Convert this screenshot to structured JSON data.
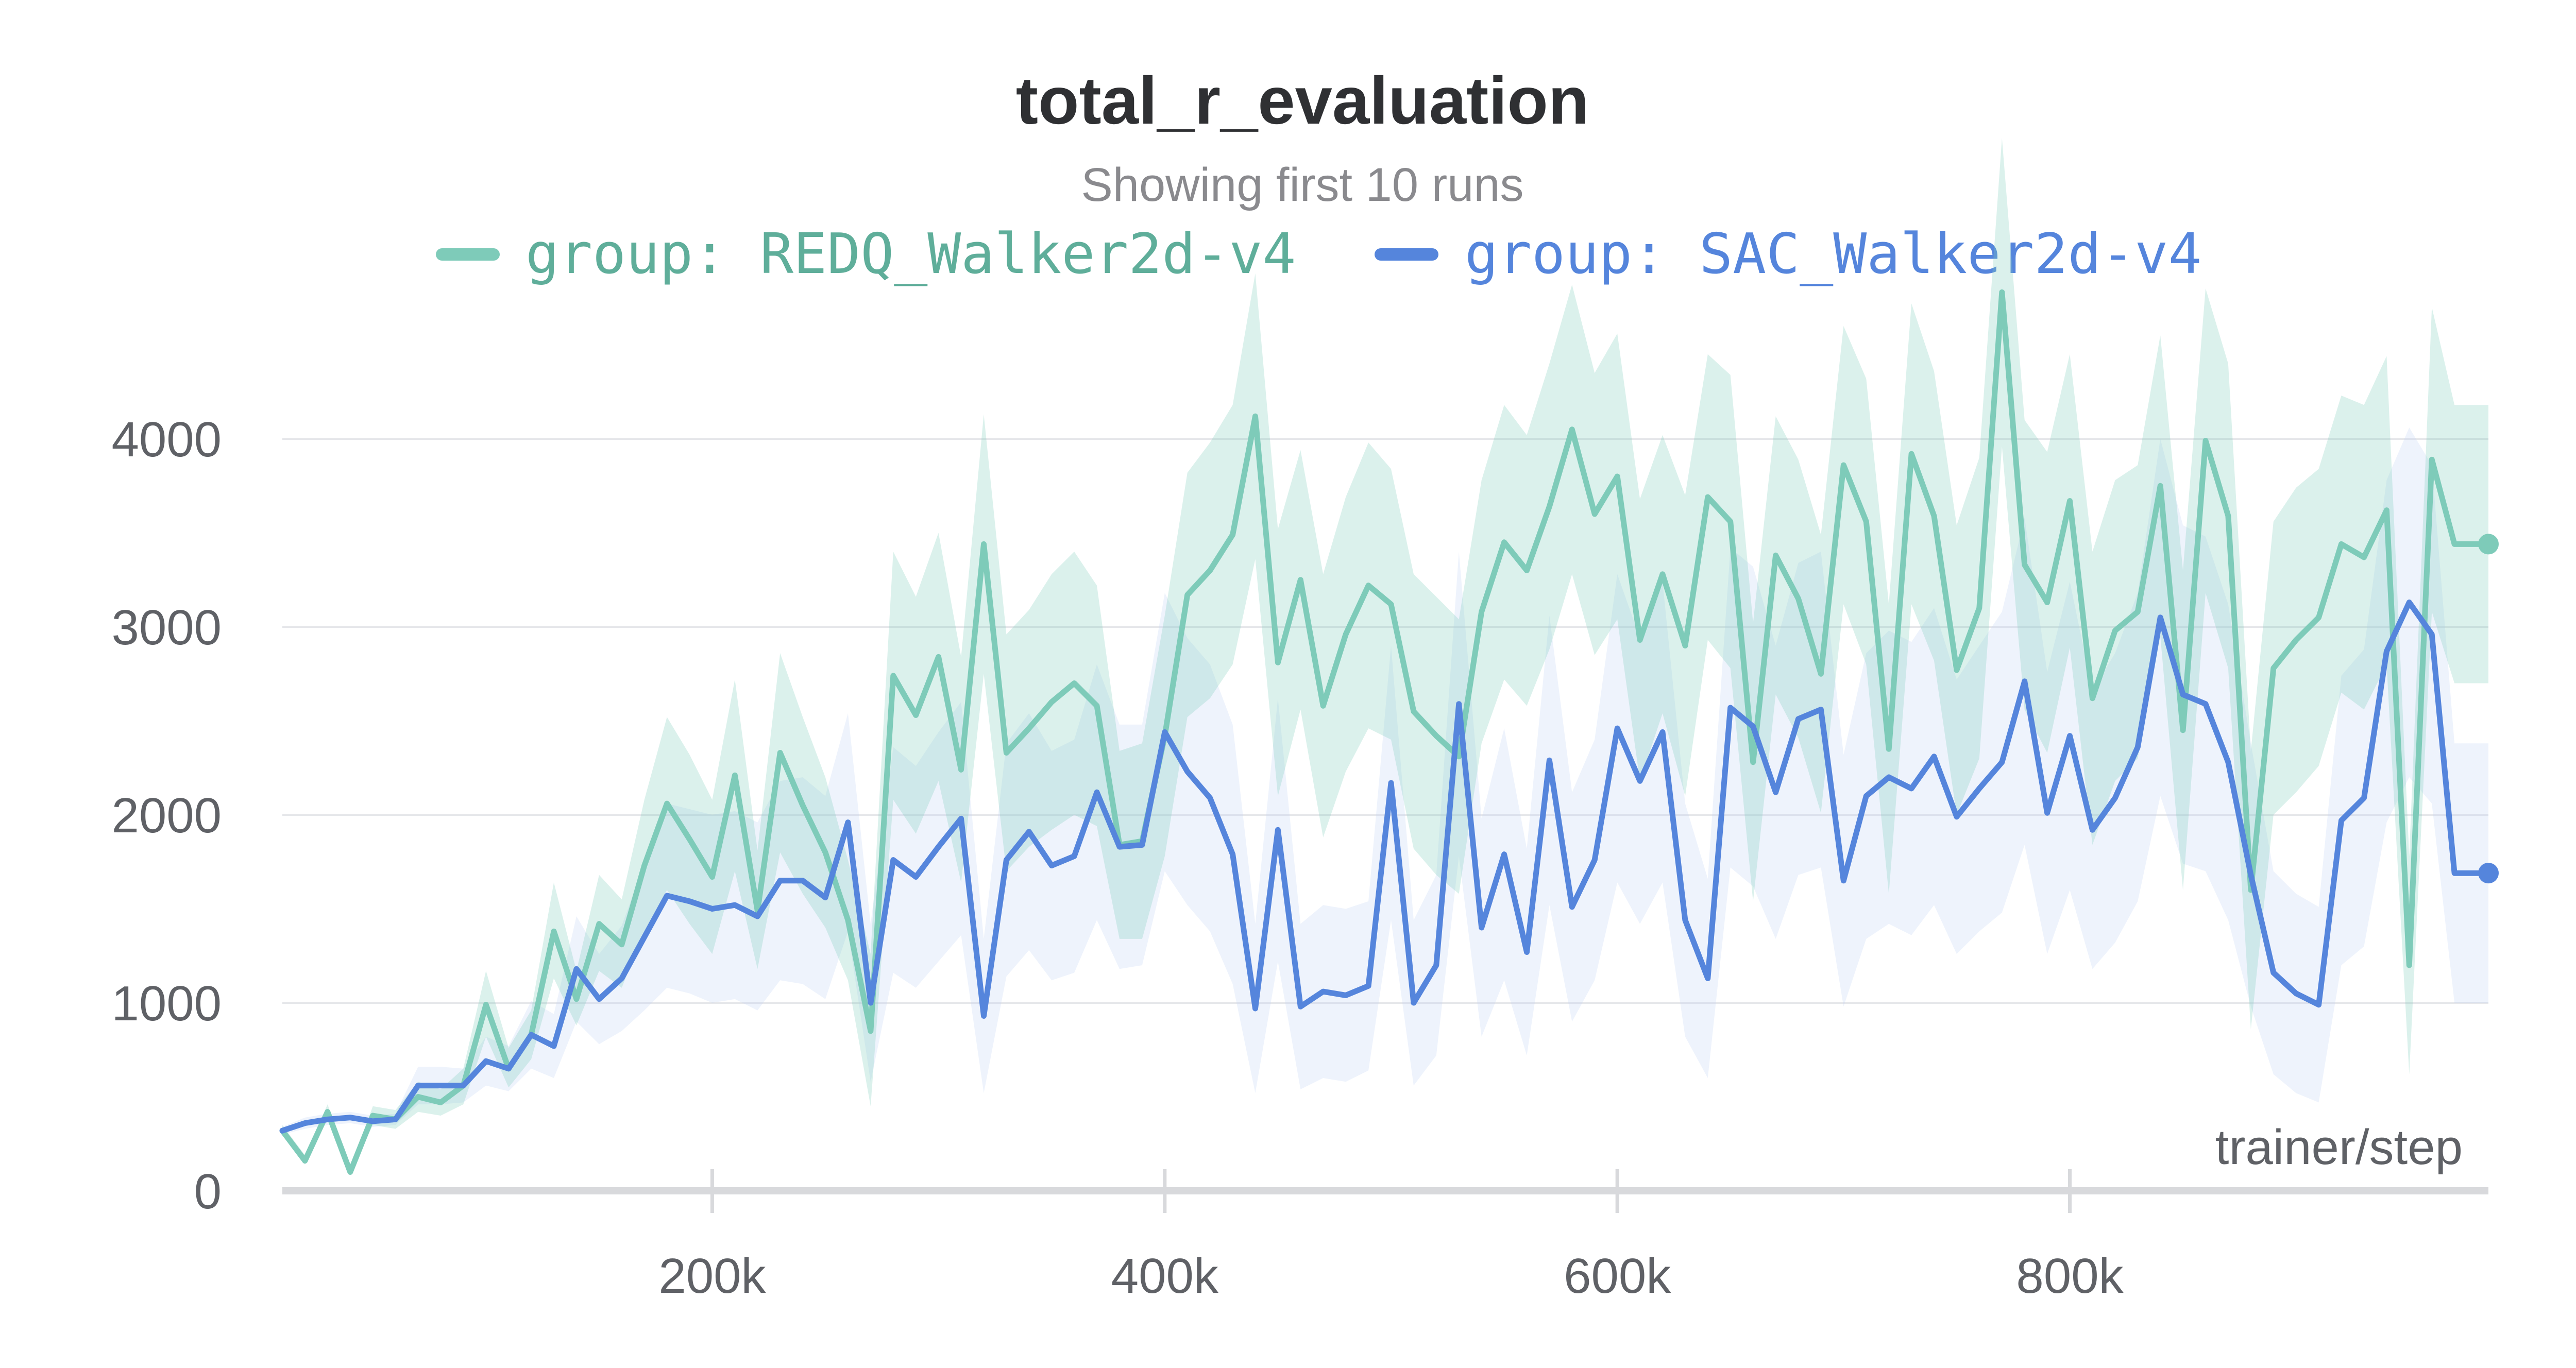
{
  "chart_data": {
    "type": "line",
    "title": "total_r_evaluation",
    "subtitle": "Showing first 10 runs",
    "xlabel": "trainer/step",
    "ylabel": "",
    "xlim": [
      10000,
      985000
    ],
    "ylim": [
      0,
      4800
    ],
    "x_ticks": [
      "200k",
      "400k",
      "600k",
      "800k"
    ],
    "x_tick_values": [
      200000,
      400000,
      600000,
      800000
    ],
    "y_ticks": [
      "0",
      "1000",
      "2000",
      "3000",
      "4000"
    ],
    "y_tick_values": [
      0,
      1000,
      2000,
      3000,
      4000
    ],
    "grid": true,
    "legend_position": "top",
    "x": [
      10000,
      20000,
      30000,
      40000,
      50000,
      60000,
      70000,
      80000,
      90000,
      100000,
      110000,
      120000,
      130000,
      140000,
      150000,
      160000,
      170000,
      180000,
      190000,
      200000,
      210000,
      220000,
      230000,
      240000,
      250000,
      260000,
      270000,
      280000,
      290000,
      300000,
      310000,
      320000,
      330000,
      340000,
      350000,
      360000,
      370000,
      380000,
      390000,
      400000,
      410000,
      420000,
      430000,
      440000,
      450000,
      460000,
      470000,
      480000,
      490000,
      500000,
      510000,
      520000,
      530000,
      540000,
      550000,
      560000,
      570000,
      580000,
      590000,
      600000,
      610000,
      620000,
      630000,
      640000,
      650000,
      660000,
      670000,
      680000,
      690000,
      700000,
      710000,
      720000,
      730000,
      740000,
      750000,
      760000,
      770000,
      780000,
      790000,
      800000,
      810000,
      820000,
      830000,
      840000,
      850000,
      860000,
      870000,
      880000,
      890000,
      900000,
      910000,
      920000,
      930000,
      940000,
      950000,
      960000,
      970000,
      980000,
      985000
    ],
    "series": [
      {
        "name": "group: REDQ_Walker2d-v4",
        "color": "#7ecbb9",
        "band_color": "#7ecbb9",
        "values": [
          320,
          160,
          420,
          100,
          400,
          380,
          500,
          470,
          560,
          990,
          650,
          830,
          1380,
          1020,
          1420,
          1310,
          1730,
          2060,
          1870,
          1670,
          2210,
          1490,
          2330,
          2050,
          1800,
          1440,
          850,
          2740,
          2530,
          2840,
          2240,
          3440,
          2330,
          2460,
          2600,
          2700,
          2580,
          1840,
          1860,
          2420,
          3170,
          3300,
          3490,
          4120,
          2810,
          3250,
          2580,
          2960,
          3220,
          3120,
          2550,
          2420,
          2310,
          3080,
          3450,
          3300,
          3640,
          4050,
          3600,
          3800,
          2930,
          3280,
          2900,
          3690,
          3560,
          2280,
          3380,
          3150,
          2750,
          3860,
          3560,
          2350,
          3920,
          3590,
          2770,
          3100,
          4780,
          3330,
          3130,
          3670,
          2620,
          2980,
          3080,
          3750,
          2450,
          3990,
          3590,
          1600,
          2780,
          2930,
          3050,
          3440,
          3370,
          3620,
          1200,
          3890,
          3440,
          3440,
          3440
        ],
        "band_lower": [
          300,
          140,
          380,
          90,
          350,
          330,
          420,
          400,
          460,
          820,
          550,
          700,
          1130,
          880,
          1170,
          1080,
          1380,
          1600,
          1420,
          1260,
          1700,
          1180,
          1800,
          1580,
          1400,
          1120,
          450,
          2080,
          1900,
          2180,
          1640,
          2750,
          1700,
          1830,
          1920,
          2000,
          1940,
          1340,
          1340,
          1780,
          2520,
          2620,
          2800,
          3360,
          2100,
          2560,
          1880,
          2230,
          2460,
          2400,
          1820,
          1680,
          1580,
          2380,
          2720,
          2580,
          2880,
          3280,
          2850,
          3040,
          2180,
          2540,
          2100,
          2930,
          2780,
          1540,
          2640,
          2410,
          2010,
          3120,
          2800,
          1580,
          3120,
          2820,
          2000,
          2300,
          3960,
          2560,
          2330,
          2890,
          1840,
          2180,
          2300,
          2950,
          1600,
          3180,
          2780,
          860,
          2000,
          2120,
          2260,
          2650,
          2560,
          2800,
          620,
          3080,
          2700,
          2700,
          2700
        ],
        "band_upper": [
          350,
          190,
          460,
          120,
          450,
          430,
          580,
          540,
          650,
          1170,
          760,
          960,
          1640,
          1170,
          1680,
          1550,
          2080,
          2520,
          2320,
          2080,
          2720,
          1810,
          2860,
          2520,
          2200,
          1760,
          1260,
          3400,
          3160,
          3500,
          2840,
          4130,
          2960,
          3090,
          3280,
          3400,
          3220,
          2340,
          2380,
          3060,
          3820,
          3980,
          4180,
          4880,
          3520,
          3940,
          3280,
          3690,
          3980,
          3840,
          3280,
          3160,
          3040,
          3780,
          4180,
          4020,
          4400,
          4820,
          4350,
          4560,
          3680,
          4020,
          3700,
          4450,
          4340,
          3020,
          4120,
          3890,
          3490,
          4600,
          4320,
          3120,
          4720,
          4360,
          3540,
          3900,
          5600,
          4100,
          3930,
          4450,
          3400,
          3780,
          3860,
          4550,
          3300,
          4800,
          4400,
          2340,
          3560,
          3740,
          3840,
          4230,
          4180,
          4440,
          1780,
          4700,
          4180,
          4180,
          4180
        ]
      },
      {
        "name": "group: SAC_Walker2d-v4",
        "color": "#5585dc",
        "band_color": "#c2d4f3",
        "values": [
          320,
          360,
          380,
          390,
          370,
          380,
          560,
          560,
          560,
          690,
          650,
          830,
          770,
          1180,
          1020,
          1130,
          1350,
          1570,
          1540,
          1500,
          1520,
          1460,
          1650,
          1650,
          1560,
          1960,
          1000,
          1760,
          1670,
          1830,
          1980,
          930,
          1760,
          1910,
          1730,
          1780,
          2120,
          1830,
          1840,
          2440,
          2230,
          2090,
          1790,
          970,
          1920,
          980,
          1060,
          1040,
          1090,
          2170,
          1000,
          1200,
          2590,
          1400,
          1790,
          1270,
          2290,
          1510,
          1760,
          2460,
          2180,
          2440,
          1440,
          1130,
          2570,
          2470,
          2120,
          2510,
          2560,
          1650,
          2100,
          2200,
          2140,
          2310,
          1990,
          2140,
          2280,
          2710,
          2010,
          2420,
          1920,
          2090,
          2360,
          3050,
          2640,
          2590,
          2280,
          1680,
          1160,
          1050,
          990,
          1970,
          2090,
          2870,
          3130,
          2960,
          1690,
          1690,
          1690
        ],
        "band_lower": [
          300,
          330,
          350,
          360,
          340,
          350,
          460,
          460,
          470,
          560,
          530,
          650,
          600,
          900,
          780,
          850,
          960,
          1080,
          1050,
          1000,
          1020,
          960,
          1120,
          1100,
          1020,
          1380,
          580,
          1160,
          1080,
          1220,
          1360,
          520,
          1140,
          1280,
          1120,
          1160,
          1440,
          1180,
          1200,
          1700,
          1520,
          1380,
          1100,
          520,
          1220,
          540,
          600,
          580,
          640,
          1440,
          560,
          720,
          1780,
          820,
          1120,
          720,
          1520,
          900,
          1120,
          1640,
          1420,
          1640,
          820,
          600,
          1720,
          1620,
          1340,
          1680,
          1720,
          980,
          1340,
          1420,
          1360,
          1520,
          1260,
          1380,
          1480,
          1840,
          1260,
          1600,
          1180,
          1320,
          1540,
          2100,
          1740,
          1700,
          1440,
          980,
          620,
          520,
          470,
          1200,
          1300,
          1960,
          2200,
          2060,
          1000,
          1000,
          1000
        ],
        "band_upper": [
          340,
          390,
          410,
          420,
          400,
          410,
          660,
          660,
          650,
          820,
          770,
          1010,
          940,
          1460,
          1260,
          1410,
          1740,
          2060,
          2030,
          2000,
          2020,
          1960,
          2180,
          2200,
          2100,
          2540,
          1420,
          2360,
          2260,
          2440,
          2600,
          1340,
          2380,
          2540,
          2340,
          2400,
          2800,
          2480,
          2480,
          3180,
          2940,
          2800,
          2480,
          1420,
          2620,
          1420,
          1520,
          1500,
          1540,
          2900,
          1440,
          1680,
          3400,
          1980,
          2460,
          1820,
          3060,
          2120,
          2400,
          3280,
          2940,
          3240,
          2060,
          1660,
          3420,
          3320,
          2900,
          3340,
          3400,
          2320,
          2860,
          2980,
          2920,
          3100,
          2720,
          2900,
          3080,
          3580,
          2760,
          3240,
          2660,
          2860,
          3180,
          4000,
          3540,
          3480,
          3120,
          2380,
          1700,
          1580,
          1510,
          2740,
          2880,
          3780,
          4060,
          3860,
          2380,
          2380,
          2380
        ]
      }
    ]
  }
}
